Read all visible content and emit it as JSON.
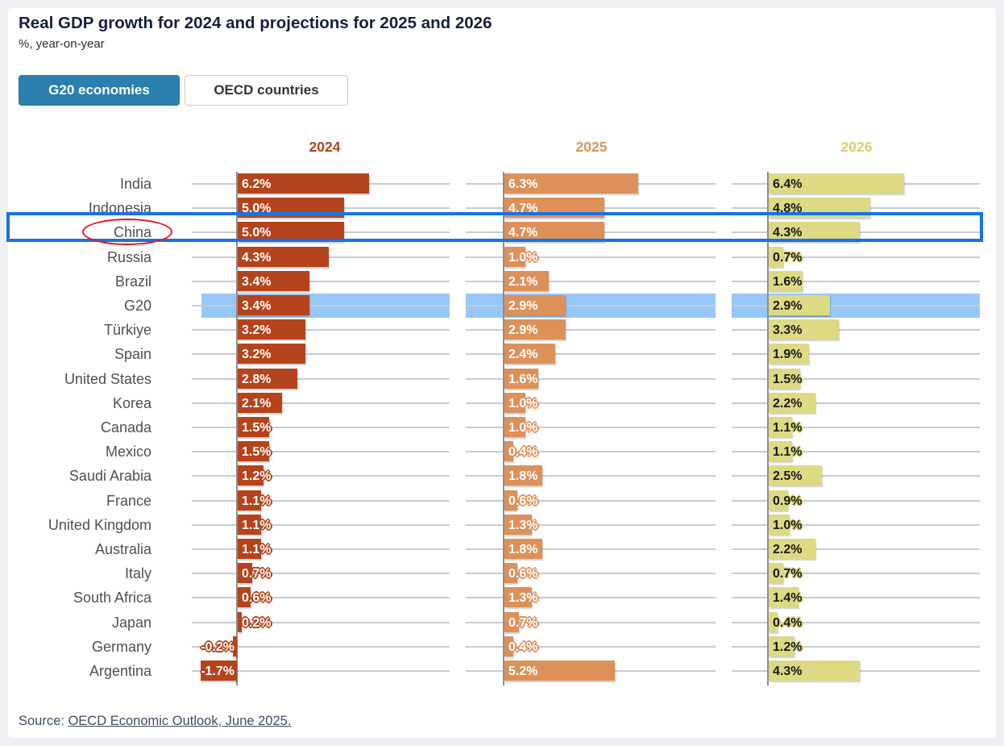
{
  "header": {
    "title": "Real GDP growth for 2024 and projections for 2025 and 2026",
    "subtitle": "%, year-on-year"
  },
  "tabs": [
    {
      "label": "G20 economies",
      "active": true
    },
    {
      "label": "OECD countries",
      "active": false
    }
  ],
  "chart_data": {
    "type": "bar",
    "orientation": "horizontal",
    "unit": "%",
    "categories": [
      "India",
      "Indonesia",
      "China",
      "Russia",
      "Brazil",
      "G20",
      "Türkiye",
      "Spain",
      "United States",
      "Korea",
      "Canada",
      "Mexico",
      "Saudi Arabia",
      "France",
      "United Kingdom",
      "Australia",
      "Italy",
      "South Africa",
      "Japan",
      "Germany",
      "Argentina"
    ],
    "series": [
      {
        "name": "2024",
        "color": "#b5431c",
        "header_color": "#b5431c",
        "value_text_color": "#ffffff",
        "values": [
          6.2,
          5.0,
          5.0,
          4.3,
          3.4,
          3.4,
          3.2,
          3.2,
          2.8,
          2.1,
          1.5,
          1.5,
          1.2,
          1.1,
          1.1,
          1.1,
          0.7,
          0.6,
          0.2,
          -0.2,
          -1.7
        ]
      },
      {
        "name": "2025",
        "color": "#dd9159",
        "header_color": "#dd9159",
        "value_text_color": "#ffffff",
        "values": [
          6.3,
          4.7,
          4.7,
          1.0,
          2.1,
          2.9,
          2.9,
          2.4,
          1.6,
          1.0,
          1.0,
          0.4,
          1.8,
          0.6,
          1.3,
          1.8,
          0.6,
          1.3,
          0.7,
          0.4,
          5.2
        ]
      },
      {
        "name": "2026",
        "color": "#ded983",
        "header_color": "#d6cf6e",
        "value_text_color": "#1a1a1a",
        "values": [
          6.4,
          4.8,
          4.3,
          0.7,
          1.6,
          2.9,
          3.3,
          1.9,
          1.5,
          2.2,
          1.1,
          1.1,
          2.5,
          0.9,
          1.0,
          2.2,
          0.7,
          1.4,
          0.4,
          1.2,
          4.3
        ]
      }
    ],
    "highlighted_row": "G20",
    "selected_row": "China",
    "xlim": [
      -2,
      7
    ],
    "grid": true,
    "legend_position": "top-as-column-headers"
  },
  "annotations": {
    "selection_box_row": "China",
    "circled_label": "China"
  },
  "source": {
    "prefix": "Source: ",
    "link_text": "OECD Economic Outlook, June 2025."
  },
  "colors": {
    "tab_active_bg": "#2b7fad",
    "highlight_band": "#97c7f8",
    "selection_box": "#1673e6",
    "annotation_red": "#e01818",
    "gridline": "#c5cbd5",
    "axis_line": "#8d8d8d",
    "title_text": "#15203c",
    "row_label_text": "#4f4f4f",
    "page_bg": "#eef0f3",
    "card_bg": "#ffffff"
  }
}
